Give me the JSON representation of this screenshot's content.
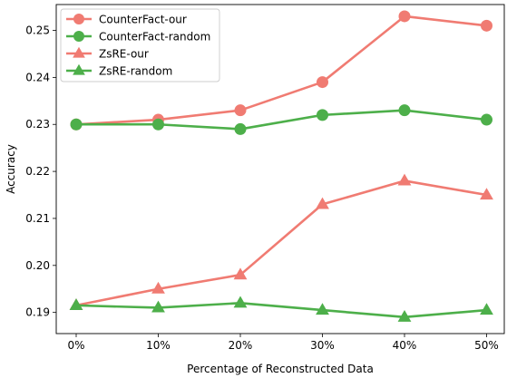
{
  "chart_data": {
    "type": "line",
    "title": "",
    "xlabel": "Percentage of Reconstructed Data",
    "ylabel": "Accuracy",
    "categories": [
      "0%",
      "10%",
      "20%",
      "30%",
      "40%",
      "50%"
    ],
    "ylim": [
      0.1855,
      0.2555
    ],
    "yticks": [
      "0.19",
      "0.20",
      "0.21",
      "0.22",
      "0.23",
      "0.24",
      "0.25"
    ],
    "grid": false,
    "legend_position": "top-left",
    "series": [
      {
        "name": "CounterFact-our",
        "marker": "circle",
        "color": "#f07b72",
        "values": [
          0.23,
          0.231,
          0.233,
          0.239,
          0.253,
          0.251
        ]
      },
      {
        "name": "CounterFact-random",
        "marker": "circle",
        "color": "#4daf4a",
        "values": [
          0.23,
          0.23,
          0.229,
          0.232,
          0.233,
          0.231
        ]
      },
      {
        "name": "ZsRE-our",
        "marker": "triangle",
        "color": "#f07b72",
        "values": [
          0.1915,
          0.195,
          0.198,
          0.213,
          0.218,
          0.215
        ]
      },
      {
        "name": "ZsRE-random",
        "marker": "triangle",
        "color": "#4daf4a",
        "values": [
          0.1915,
          0.191,
          0.192,
          0.1905,
          0.189,
          0.1905
        ]
      }
    ]
  }
}
